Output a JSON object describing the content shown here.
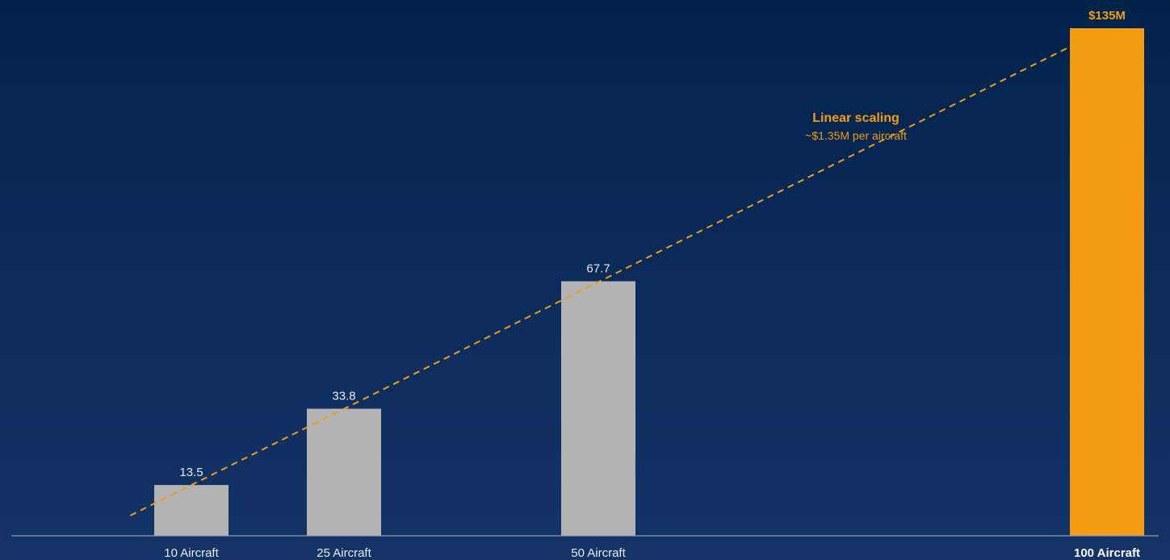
{
  "chart_data": {
    "type": "bar",
    "title": "",
    "xlabel": "",
    "ylabel": "",
    "categories": [
      "10 Aircraft",
      "25 Aircraft",
      "50 Aircraft",
      "100 Aircraft"
    ],
    "x": [
      10,
      25,
      50,
      100
    ],
    "values": [
      13.5,
      33.8,
      67.7,
      135
    ],
    "value_labels": [
      "13.5",
      "33.8",
      "67.7",
      "$135M"
    ],
    "highlight_index": 3,
    "ylim": [
      0,
      135
    ],
    "xlim": [
      0,
      100
    ],
    "grid": false,
    "legend": "none",
    "colors": {
      "bar": "#b3b3b3",
      "highlight_bar": "#f39c12",
      "trend_line": "#f39c12",
      "axis": "#8f9ab0",
      "background_top": "#01234a",
      "background_bottom": "#143468"
    },
    "trend_line": {
      "style": "dashed",
      "slope_per_aircraft": 1.35,
      "x_range": [
        4,
        100
      ]
    },
    "annotation": {
      "title": "Linear scaling",
      "subtitle": "~$1.35M per aircraft",
      "color": "#f39c12"
    }
  }
}
